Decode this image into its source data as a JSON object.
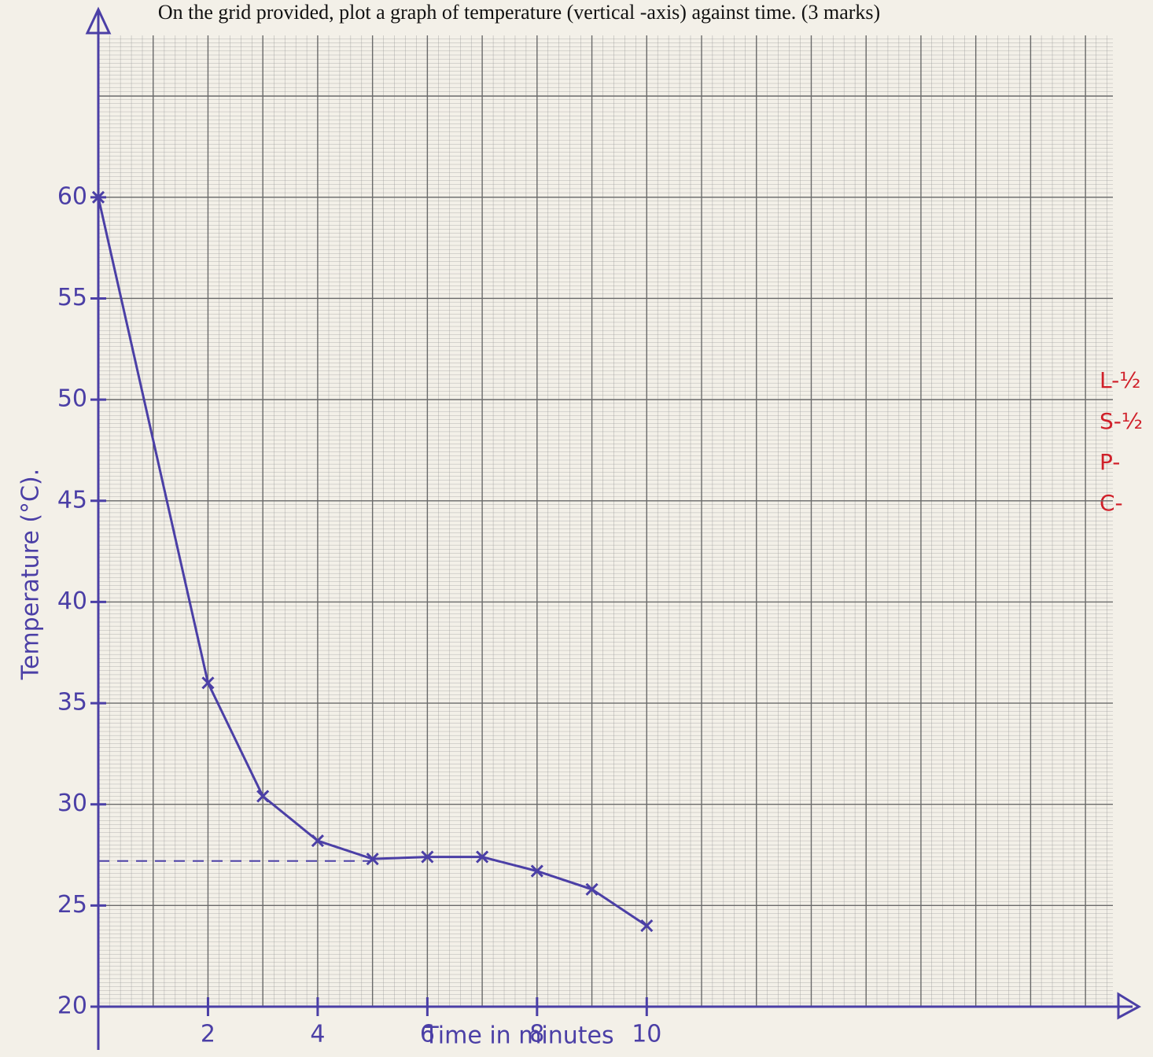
{
  "chart_data": {
    "type": "line",
    "title": "On the grid provided, plot a graph of temperature (vertical -axis) against time. (3 marks)",
    "xlabel": "Time in minutes",
    "ylabel": "Temperature (°C).",
    "x": [
      0,
      2,
      3,
      4,
      5,
      6,
      7,
      8,
      9,
      10
    ],
    "series": [
      {
        "color": "#4b3fa6",
        "values": [
          60,
          36,
          30.4,
          28.2,
          27.3,
          27.4,
          27.4,
          26.7,
          25.8,
          24
        ]
      }
    ],
    "reference_y": 27.2,
    "xlim": [
      0,
      18.5
    ],
    "ylim": [
      20,
      68
    ],
    "xticks": [
      2,
      4,
      6,
      8,
      10
    ],
    "yticks": [
      20,
      25,
      30,
      35,
      40,
      45,
      50,
      55,
      60
    ],
    "grid": true,
    "margin_notes": [
      "L-½",
      "S-½",
      "P-",
      "C-"
    ]
  }
}
